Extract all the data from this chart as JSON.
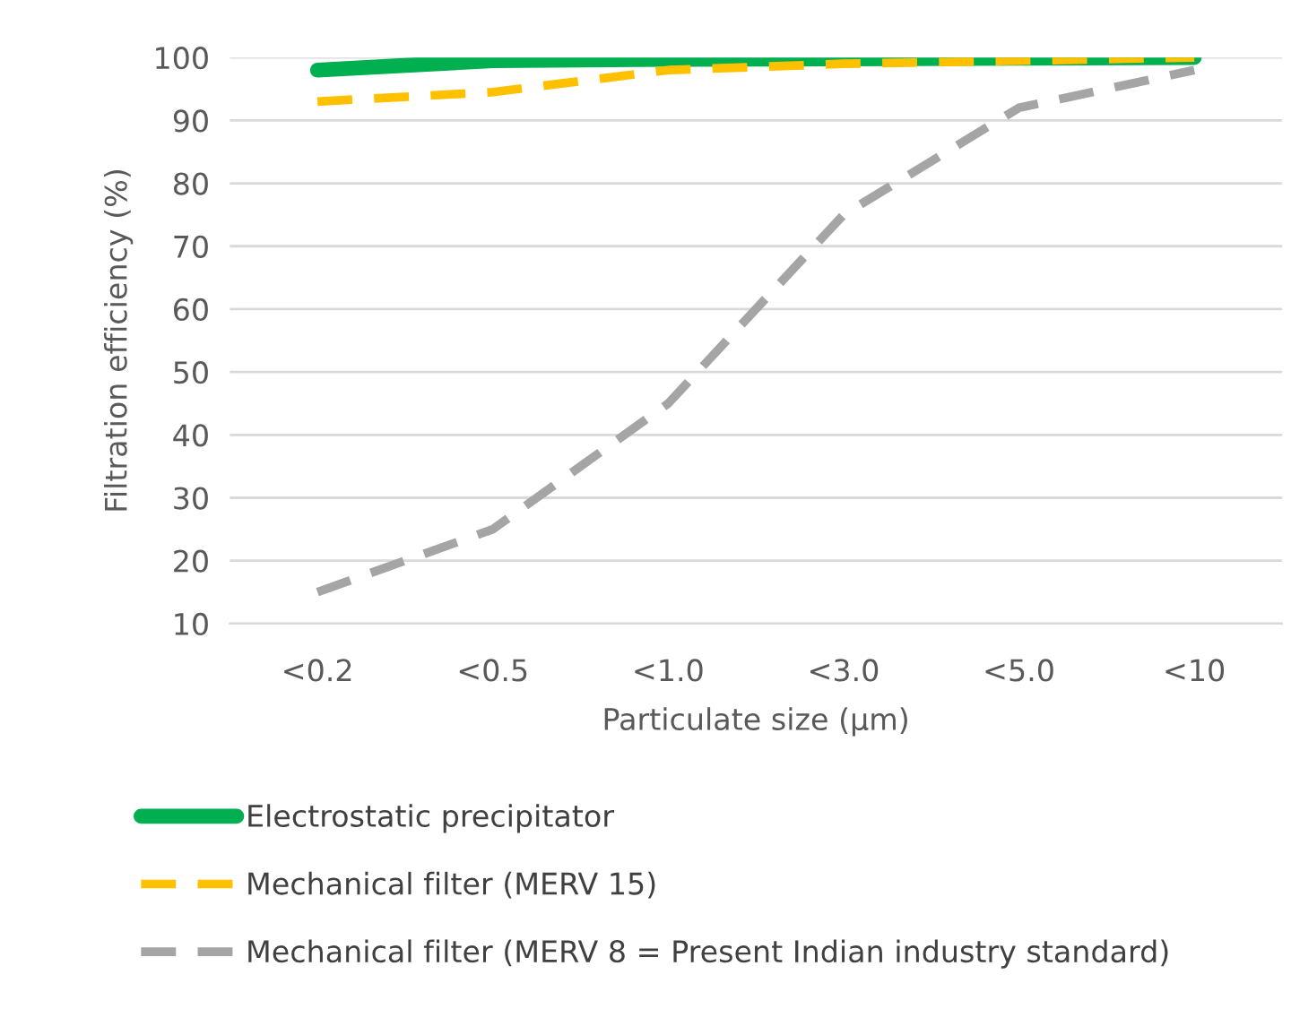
{
  "chart_data": {
    "type": "line",
    "xlabel": "Particulate size (µm)",
    "ylabel": "Filtration efficiency (%)",
    "categories": [
      "<0.2",
      "<0.5",
      "<1.0",
      "<3.0",
      "<5.0",
      "<10"
    ],
    "series": [
      {
        "name": "Electrostatic precipitator",
        "color": "#00b050",
        "line_style": "solid",
        "values": [
          98,
          99.5,
          99.7,
          99.8,
          99.9,
          100
        ]
      },
      {
        "name": "Mechanical filter (MERV 15)",
        "color": "#ffc000",
        "line_style": "dashed",
        "values": [
          93,
          94.5,
          98,
          99,
          99.5,
          100
        ]
      },
      {
        "name": "Mechanical filter (MERV 8 = Present Indian industry standard)",
        "color": "#a5a5a5",
        "line_style": "dashed",
        "values": [
          15,
          25,
          45,
          75,
          92,
          98
        ]
      }
    ],
    "ylim": [
      10,
      100
    ],
    "yticks": [
      10,
      20,
      30,
      40,
      50,
      60,
      70,
      80,
      90,
      100
    ],
    "grid": "y",
    "legend": "bottom left",
    "marker": "none"
  }
}
